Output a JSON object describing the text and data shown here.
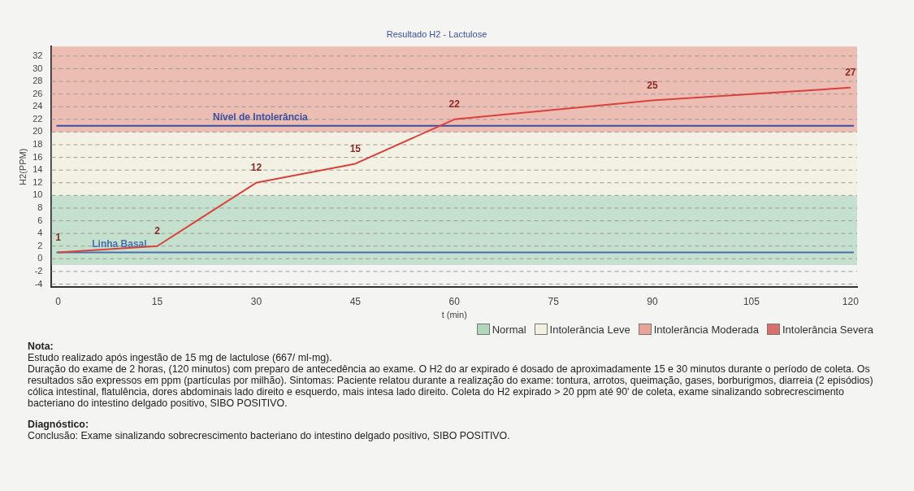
{
  "chart_data": {
    "type": "line",
    "title": "Resultado H2 - Lactulose",
    "xlabel": "t (min)",
    "ylabel": "H2(PPM)",
    "x": [
      0,
      15,
      30,
      45,
      60,
      90,
      120
    ],
    "series": [
      {
        "color": "#d9413c",
        "values": [
          1,
          2,
          12,
          15,
          22,
          25,
          27
        ]
      }
    ],
    "xlim": [
      -1,
      121
    ],
    "xticks": [
      0,
      15,
      30,
      45,
      60,
      75,
      90,
      105,
      120
    ],
    "ylim": [
      -4.5,
      33.5
    ],
    "yticks": [
      -4,
      -2,
      0,
      2,
      4,
      6,
      8,
      10,
      12,
      14,
      16,
      18,
      20,
      22,
      24,
      26,
      28,
      30,
      32
    ],
    "grid": "y",
    "marker": "none",
    "data_labels": true,
    "legend": "bottom",
    "bands": [
      {
        "axis": "y",
        "from": -1,
        "to": 10,
        "label": "Normal",
        "color": "#9fcfae"
      },
      {
        "axis": "y",
        "from": 10,
        "to": 20,
        "label": "Intolerância Leve",
        "color": "#f2efd9"
      },
      {
        "axis": "y",
        "from": 20,
        "to": 33.5,
        "label": "Intolerância Moderada",
        "color": "#e68f7f"
      }
    ],
    "ref_lines": [
      {
        "axis": "y",
        "value": 21,
        "label": "Nível de Intolerância",
        "color": "#3b4fa0"
      },
      {
        "axis": "y",
        "value": 1,
        "label": "Linha Basal",
        "color": "#4a6fb0"
      }
    ],
    "annotations": [
      "Intolerância Severa",
      "Nota:",
      "Estudo realizado após ingestão de 15 mg de lactulose (667/ ml-mg).",
      "Duração do exame de  2 horas, (120 minutos) com preparo de antecedência ao exame. O H2 do ar expirado é dosado de aproximadamente 15 e 30 minutos durante o período de coleta. Os resultados são expressos em ppm (partículas por milhão). Sintomas: Paciente relatou durante a realização do exame: tontura, arrotos, queimação,  gases, borburigmos, diarreia (2 episódios) cólica intestinal, flatulência, dores abdominais lado direito e esquerdo, mais intesa lado direito. Coleta do H2 expirado > 20 ppm até 90' de coleta, exame sinalizando sobrecrescimento bacteriano do intestino delgado positivo, SIBO POSITIVO.",
      "Diagnóstico:",
      "Conclusão: Exame sinalizando sobrecrescimento bacteriano do intestino delgado positivo, SIBO POSITIVO."
    ]
  }
}
